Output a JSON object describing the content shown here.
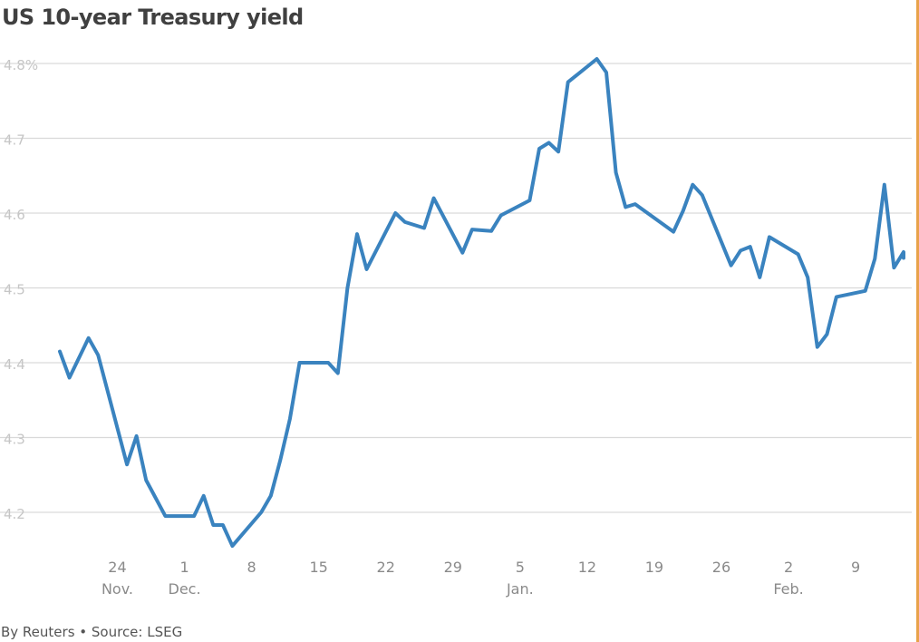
{
  "colors": {
    "line": "#3a83bf",
    "grid": "#d9d9d9",
    "frame": "#e8a24a"
  },
  "title": "US 10-year Treasury yield",
  "footer": "By Reuters • Source: LSEG",
  "chart_data": {
    "type": "line",
    "title": "US 10-year Treasury yield",
    "xlabel": "",
    "ylabel": "",
    "ylim": [
      4.15,
      4.8
    ],
    "xlim": [
      "2024-11-18",
      "2025-02-14"
    ],
    "grid": "horizontal",
    "y_ticks": [
      {
        "value": 4.8,
        "label": "4.8%"
      },
      {
        "value": 4.7,
        "label": "4.7"
      },
      {
        "value": 4.6,
        "label": "4.6"
      },
      {
        "value": 4.5,
        "label": "4.5"
      },
      {
        "value": 4.4,
        "label": "4.4"
      },
      {
        "value": 4.3,
        "label": "4.3"
      },
      {
        "value": 4.2,
        "label": "4.2"
      }
    ],
    "x_ticks": [
      {
        "date": "2024-11-24",
        "day": "24",
        "month": "Nov."
      },
      {
        "date": "2024-12-01",
        "day": "1",
        "month": "Dec."
      },
      {
        "date": "2024-12-08",
        "day": "8",
        "month": ""
      },
      {
        "date": "2024-12-15",
        "day": "15",
        "month": ""
      },
      {
        "date": "2024-12-22",
        "day": "22",
        "month": ""
      },
      {
        "date": "2024-12-29",
        "day": "29",
        "month": ""
      },
      {
        "date": "2025-01-05",
        "day": "5",
        "month": "Jan."
      },
      {
        "date": "2025-01-12",
        "day": "12",
        "month": ""
      },
      {
        "date": "2025-01-19",
        "day": "19",
        "month": ""
      },
      {
        "date": "2025-01-26",
        "day": "26",
        "month": ""
      },
      {
        "date": "2025-02-02",
        "day": "2",
        "month": "Feb."
      },
      {
        "date": "2025-02-09",
        "day": "9",
        "month": ""
      }
    ],
    "series": [
      {
        "points": [
          [
            "2024-11-18",
            4.415
          ],
          [
            "2024-11-19",
            4.38
          ],
          [
            "2024-11-21",
            4.433
          ],
          [
            "2024-11-22",
            4.41
          ],
          [
            "2024-11-25",
            4.264
          ],
          [
            "2024-11-26",
            4.302
          ],
          [
            "2024-11-27",
            4.243
          ],
          [
            "2024-11-29",
            4.195
          ],
          [
            "2024-12-02",
            4.195
          ],
          [
            "2024-12-03",
            4.222
          ],
          [
            "2024-12-04",
            4.183
          ],
          [
            "2024-12-05",
            4.183
          ],
          [
            "2024-12-06",
            4.155
          ],
          [
            "2024-12-09",
            4.2
          ],
          [
            "2024-12-10",
            4.222
          ],
          [
            "2024-12-11",
            4.27
          ],
          [
            "2024-12-12",
            4.325
          ],
          [
            "2024-12-13",
            4.4
          ],
          [
            "2024-12-16",
            4.4
          ],
          [
            "2024-12-17",
            4.386
          ],
          [
            "2024-12-18",
            4.5
          ],
          [
            "2024-12-19",
            4.572
          ],
          [
            "2024-12-20",
            4.525
          ],
          [
            "2024-12-23",
            4.6
          ],
          [
            "2024-12-24",
            4.588
          ],
          [
            "2024-12-26",
            4.58
          ],
          [
            "2024-12-27",
            4.62
          ],
          [
            "2024-12-30",
            4.547
          ],
          [
            "2024-12-31",
            4.578
          ],
          [
            "2025-01-02",
            4.576
          ],
          [
            "2025-01-03",
            4.597
          ],
          [
            "2025-01-06",
            4.617
          ],
          [
            "2025-01-07",
            4.686
          ],
          [
            "2025-01-08",
            4.694
          ],
          [
            "2025-01-09",
            4.682
          ],
          [
            "2025-01-10",
            4.775
          ],
          [
            "2025-01-13",
            4.806
          ],
          [
            "2025-01-14",
            4.788
          ],
          [
            "2025-01-15",
            4.654
          ],
          [
            "2025-01-16",
            4.608
          ],
          [
            "2025-01-17",
            4.612
          ],
          [
            "2025-01-21",
            4.575
          ],
          [
            "2025-01-22",
            4.603
          ],
          [
            "2025-01-23",
            4.638
          ],
          [
            "2025-01-24",
            4.624
          ],
          [
            "2025-01-27",
            4.53
          ],
          [
            "2025-01-28",
            4.55
          ],
          [
            "2025-01-29",
            4.555
          ],
          [
            "2025-01-30",
            4.514
          ],
          [
            "2025-01-31",
            4.568
          ],
          [
            "2025-02-03",
            4.545
          ],
          [
            "2025-02-04",
            4.514
          ],
          [
            "2025-02-05",
            4.421
          ],
          [
            "2025-02-06",
            4.438
          ],
          [
            "2025-02-07",
            4.488
          ],
          [
            "2025-02-10",
            4.496
          ],
          [
            "2025-02-11",
            4.539
          ],
          [
            "2025-02-12",
            4.638
          ],
          [
            "2025-02-13",
            4.527
          ],
          [
            "2025-02-14",
            4.548
          ],
          [
            "2025-02-14",
            4.54
          ]
        ]
      }
    ]
  }
}
